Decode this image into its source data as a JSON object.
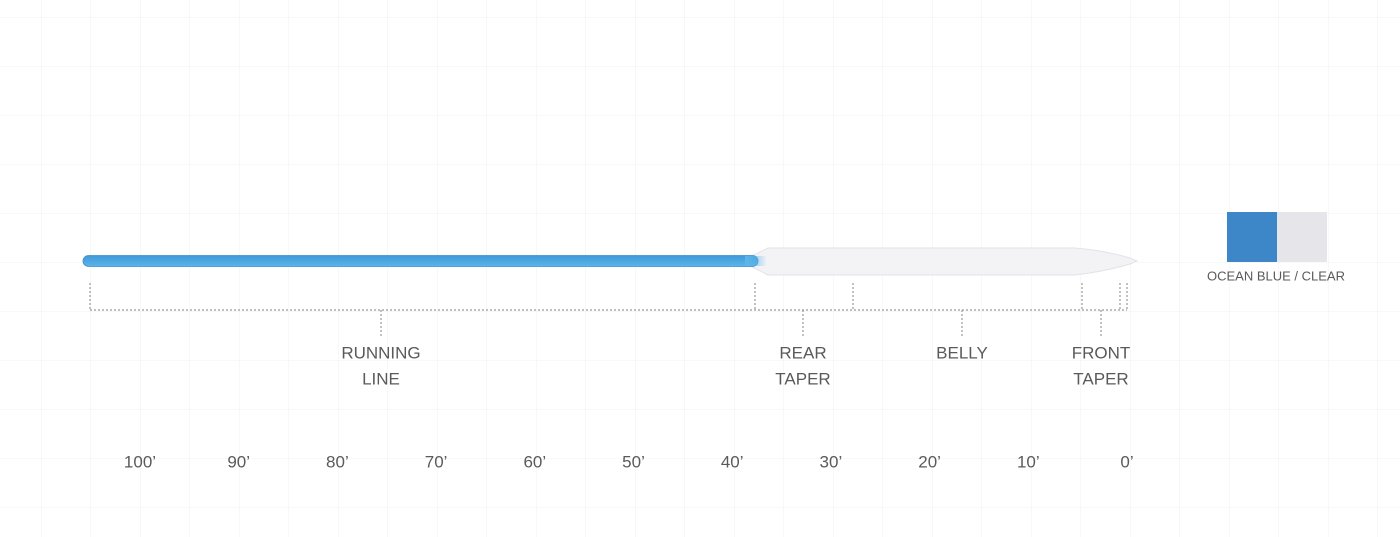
{
  "sections": [
    {
      "lines": [
        "RUNNING",
        "LINE"
      ]
    },
    {
      "lines": [
        "REAR",
        "TAPER"
      ]
    },
    {
      "lines": [
        "BELLY"
      ]
    },
    {
      "lines": [
        "FRONT",
        "TAPER"
      ]
    }
  ],
  "scale": [
    "100’",
    "90’",
    "80’",
    "70’",
    "60’",
    "50’",
    "40’",
    "30’",
    "20’",
    "10’",
    "0’"
  ],
  "legend": {
    "label": "OCEAN BLUE / CLEAR"
  }
}
